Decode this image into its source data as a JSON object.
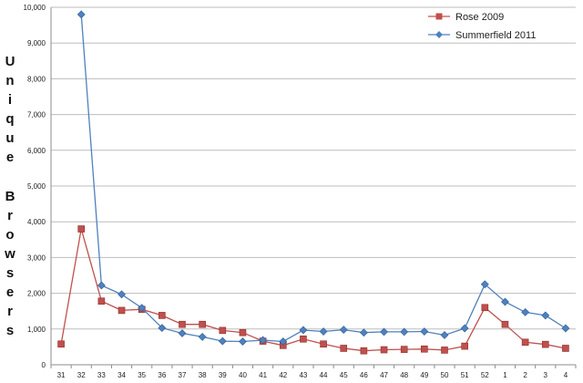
{
  "chart_data": {
    "type": "line",
    "title": "",
    "xlabel": "",
    "ylabel": "Unique Browsers",
    "ylim": [
      0,
      10000
    ],
    "yticks": [
      "0",
      "1,000",
      "2,000",
      "3,000",
      "4,000",
      "5,000",
      "6,000",
      "7,000",
      "8,000",
      "9,000",
      "10,000"
    ],
    "categories": [
      "31",
      "32",
      "33",
      "34",
      "35",
      "36",
      "37",
      "38",
      "39",
      "40",
      "41",
      "42",
      "43",
      "44",
      "45",
      "46",
      "47",
      "48",
      "49",
      "50",
      "51",
      "52",
      "1",
      "2",
      "3",
      "4"
    ],
    "grid": "horizontal",
    "legend_position": "top-right",
    "series": [
      {
        "name": "Rose 2009",
        "color": "#c0504d",
        "marker": "square",
        "values": [
          580,
          3800,
          1780,
          1520,
          1550,
          1380,
          1130,
          1130,
          960,
          900,
          660,
          540,
          720,
          580,
          460,
          390,
          420,
          430,
          440,
          410,
          520,
          1600,
          1130,
          630,
          570,
          460
        ]
      },
      {
        "name": "Summerfield 2011",
        "color": "#4f81bd",
        "marker": "diamond",
        "values": [
          null,
          9800,
          2220,
          1970,
          1590,
          1030,
          880,
          780,
          660,
          650,
          690,
          650,
          970,
          930,
          980,
          900,
          920,
          920,
          930,
          830,
          1020,
          2250,
          1760,
          1470,
          1380,
          1020
        ]
      }
    ]
  }
}
